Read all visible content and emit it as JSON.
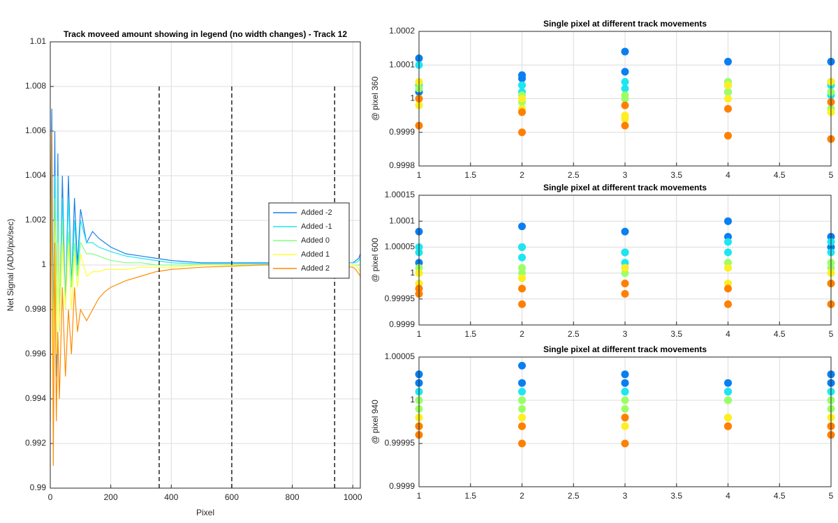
{
  "chart_data": [
    {
      "type": "line",
      "title": "Track moveed amount showing in legend (no width changes) - Track 12",
      "xlabel": "Pixel",
      "ylabel": "Net Signal (ADU/pix/sec)",
      "x": [
        0,
        5,
        10,
        15,
        20,
        25,
        30,
        40,
        50,
        60,
        70,
        80,
        90,
        100,
        120,
        140,
        160,
        180,
        200,
        250,
        300,
        350,
        400,
        500,
        600,
        700,
        800,
        900,
        1000,
        1010,
        1020,
        1025
      ],
      "series": [
        {
          "name": "Added -2",
          "color": "#1a7fe8",
          "values": [
            1.0,
            1.007,
            0.996,
            1.006,
            0.995,
            1.005,
            0.997,
            1.004,
            0.998,
            1.004,
            0.999,
            1.003,
            1.0,
            1.0025,
            1.001,
            1.0015,
            1.0012,
            1.001,
            1.0008,
            1.0005,
            1.0004,
            1.0003,
            1.0002,
            1.0001,
            1.0001,
            1.0001,
            1.0001,
            1.0001,
            1.0001,
            1.0002,
            1.0003,
            1.0005
          ]
        },
        {
          "name": "Added -1",
          "color": "#1ee6f0",
          "values": [
            1.0,
            1.005,
            0.995,
            1.004,
            0.996,
            1.004,
            0.997,
            1.003,
            0.998,
            1.003,
            0.999,
            1.002,
            0.9995,
            1.002,
            1.001,
            1.001,
            1.0008,
            1.0007,
            1.0006,
            1.0004,
            1.0003,
            1.0002,
            1.0001,
            1.00005,
            1.00005,
            1.00005,
            1.00005,
            1.00005,
            1.0001,
            1.0001,
            1.0002,
            1.0003
          ]
        },
        {
          "name": "Added 0",
          "color": "#80ff80",
          "values": [
            1.0,
            1.003,
            0.996,
            1.003,
            0.997,
            1.002,
            0.998,
            1.002,
            0.998,
            1.0015,
            0.999,
            1.001,
            0.9995,
            1.001,
            1.0005,
            1.0005,
            1.0004,
            1.0003,
            1.0002,
            1.0001,
            1.0001,
            1.0,
            1.0,
            1.0,
            1.0,
            1.0,
            1.0,
            1.0,
            1.0,
            1.0,
            1.0,
            1.0
          ]
        },
        {
          "name": "Added 1",
          "color": "#ffff33",
          "values": [
            1.0,
            1.002,
            0.995,
            1.002,
            0.996,
            1.001,
            0.997,
            1.001,
            0.998,
            1.001,
            0.998,
            1.0005,
            0.999,
            1.0005,
            0.9995,
            0.9997,
            0.9997,
            0.9998,
            0.9998,
            0.9998,
            0.9999,
            0.9999,
            0.9999,
            1.0,
            1.0,
            1.0,
            1.0,
            1.0,
            1.0,
            1.0,
            0.9998,
            0.9997
          ]
        },
        {
          "name": "Added 2",
          "color": "#ff8c00",
          "values": [
            0.993,
            1.006,
            0.991,
            1.001,
            0.993,
            0.997,
            0.994,
            0.999,
            0.995,
            0.998,
            0.996,
            0.999,
            0.997,
            0.998,
            0.9975,
            0.998,
            0.9985,
            0.9988,
            0.999,
            0.9993,
            0.9995,
            0.9997,
            0.9998,
            0.9999,
            0.99995,
            1.0,
            1.0,
            1.0,
            0.9999,
            0.9998,
            0.9996,
            0.9995
          ]
        }
      ],
      "xlim": [
        0,
        1025
      ],
      "xticks": [
        0,
        200,
        400,
        600,
        800,
        1000
      ],
      "ylim": [
        0.99,
        1.01
      ],
      "yticks": [
        0.99,
        0.992,
        0.994,
        0.996,
        0.998,
        1,
        1.002,
        1.004,
        1.006,
        1.008,
        1.01
      ],
      "grid": true,
      "legend": "east",
      "vlines": {
        "x": [
          360,
          600,
          940
        ],
        "top": 1.008
      }
    },
    {
      "type": "scatter",
      "title": "Single pixel at different track movements",
      "ylabel": "@ pixel 360",
      "x": [
        1,
        1,
        2,
        2,
        3,
        3,
        4,
        4,
        5,
        5
      ],
      "series": [
        {
          "color": "#0a7ff0",
          "values": [
            1.00012,
            1.00002,
            1.00007,
            1.00006,
            1.00014,
            1.00008,
            1.00011,
            1.00002,
            1.00011,
            1.00005
          ]
        },
        {
          "color": "#1ee6f0",
          "values": [
            1.0001,
            1.00004,
            1.00004,
            1.00002,
            1.00005,
            1.00003,
            1.00005,
            1.00004,
            1.00004,
            1.00001
          ]
        },
        {
          "color": "#9cff66",
          "values": [
            1.00003,
            1.0,
            1.00001,
            0.99999,
            1.00001,
            1.0,
            1.00005,
            1.00002,
            1.00002,
            0.99997
          ]
        },
        {
          "color": "#ffee22",
          "values": [
            1.00005,
            0.99998,
            1.0,
            0.99997,
            0.99995,
            0.99994,
            1.00004,
            1.0,
            1.00005,
            0.99996
          ]
        },
        {
          "color": "#ff8000",
          "values": [
            1.0,
            0.99992,
            0.99996,
            0.9999,
            0.99998,
            0.99992,
            0.99997,
            0.99989,
            0.99999,
            0.99988
          ]
        }
      ],
      "xlim": [
        1,
        5
      ],
      "xticks": [
        1,
        1.5,
        2,
        2.5,
        3,
        3.5,
        4,
        4.5,
        5
      ],
      "ylim": [
        0.9998,
        1.0002
      ],
      "yticks": [
        0.9998,
        0.9999,
        1,
        1.0001,
        1.0002
      ],
      "grid": true
    },
    {
      "type": "scatter",
      "title": "Single pixel at different track movements",
      "ylabel": "@ pixel 600",
      "x": [
        1,
        1,
        2,
        2,
        3,
        3,
        4,
        4,
        5,
        5
      ],
      "series": [
        {
          "color": "#0a7ff0",
          "values": [
            1.00008,
            1.00002,
            1.00009,
            1.00005,
            1.00008,
            1.00004,
            1.0001,
            1.00007,
            1.00007,
            1.00005
          ]
        },
        {
          "color": "#1ee6f0",
          "values": [
            1.00005,
            1.00004,
            1.00005,
            1.00003,
            1.00004,
            1.00002,
            1.00006,
            1.00004,
            1.00006,
            1.00004
          ]
        },
        {
          "color": "#9cff66",
          "values": [
            1.00001,
            1.0,
            1.00001,
            1.0,
            1.00001,
            1.0,
            1.00002,
            1.00001,
            1.00002,
            1.00001
          ]
        },
        {
          "color": "#ffee22",
          "values": [
            1.0,
            0.99998,
            0.99999,
            0.99997,
            1.00001,
            0.99998,
            1.00001,
            0.99998,
            1.0,
            0.99998
          ]
        },
        {
          "color": "#ff8000",
          "values": [
            0.99997,
            0.99996,
            0.99997,
            0.99994,
            0.99998,
            0.99996,
            0.99997,
            0.99994,
            0.99998,
            0.99994
          ]
        }
      ],
      "xlim": [
        1,
        5
      ],
      "xticks": [
        1,
        1.5,
        2,
        2.5,
        3,
        3.5,
        4,
        4.5,
        5
      ],
      "ylim": [
        0.9999,
        1.00015
      ],
      "yticks": [
        0.9999,
        0.99995,
        1,
        1.00005,
        1.0001,
        1.00015
      ],
      "grid": true
    },
    {
      "type": "scatter",
      "title": "Single pixel at different track movements",
      "ylabel": "@ pixel 940",
      "x": [
        1,
        1,
        2,
        2,
        3,
        3,
        4,
        4,
        5,
        5
      ],
      "series": [
        {
          "color": "#0a7ff0",
          "values": [
            1.00003,
            1.00002,
            1.00004,
            1.00002,
            1.00003,
            1.00002,
            1.00002,
            1.00001,
            1.00003,
            1.00002
          ]
        },
        {
          "color": "#1ee6f0",
          "values": [
            1.00001,
            1.0,
            1.00001,
            1.0,
            1.00001,
            1.00001,
            1.00001,
            1.0,
            1.00001,
            1.0
          ]
        },
        {
          "color": "#9cff66",
          "values": [
            1.0,
            0.99999,
            1.0,
            0.99999,
            1.0,
            0.99999,
            1.0,
            1.0,
            1.0,
            0.99999
          ]
        },
        {
          "color": "#ffee22",
          "values": [
            0.99998,
            0.99997,
            0.99998,
            0.99997,
            0.99998,
            0.99997,
            0.99998,
            0.99998,
            0.99998,
            0.99997
          ]
        },
        {
          "color": "#ff8000",
          "values": [
            0.99997,
            0.99996,
            0.99997,
            0.99995,
            0.99998,
            0.99995,
            0.99997,
            0.99997,
            0.99997,
            0.99996
          ]
        }
      ],
      "xlim": [
        1,
        5
      ],
      "xticks": [
        1,
        1.5,
        2,
        2.5,
        3,
        3.5,
        4,
        4.5,
        5
      ],
      "ylim": [
        0.9999,
        1.00005
      ],
      "yticks": [
        0.9999,
        0.99995,
        1,
        1.00005
      ],
      "grid": true
    }
  ]
}
